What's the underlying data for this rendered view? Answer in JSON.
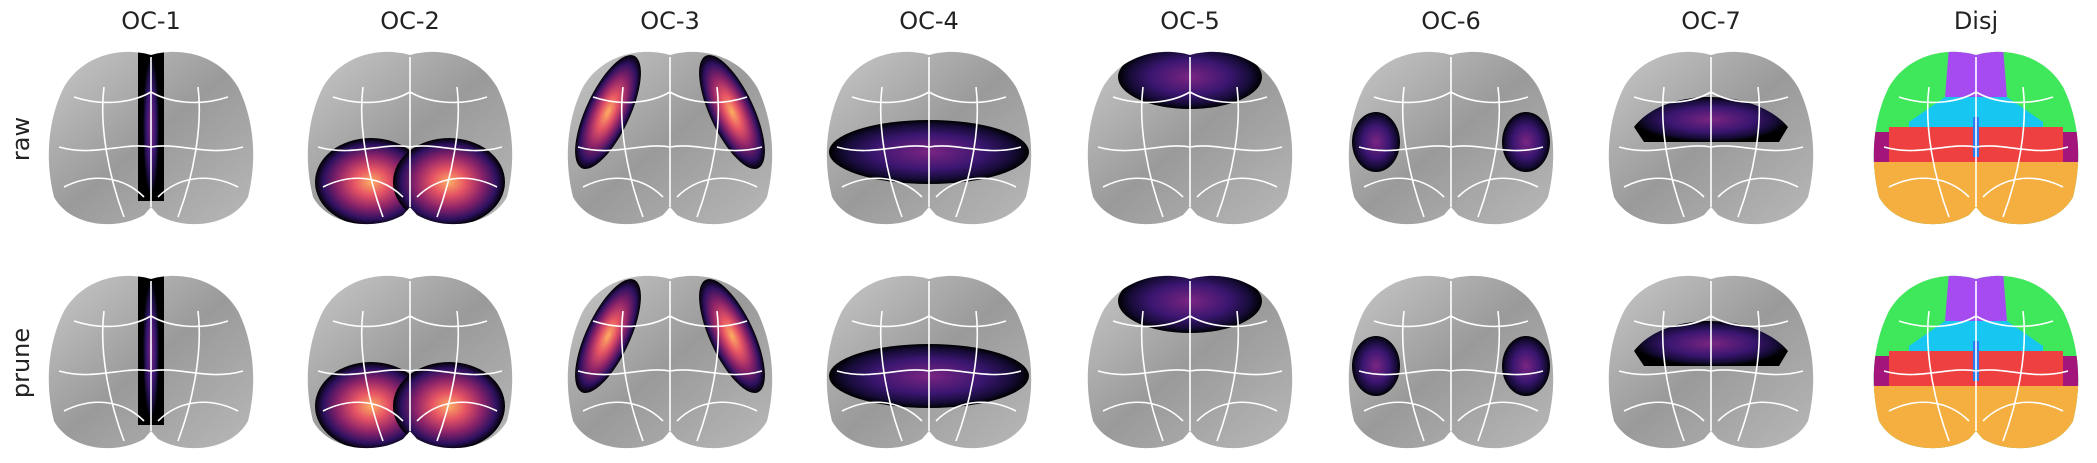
{
  "columns": [
    "OC-1",
    "OC-2",
    "OC-3",
    "OC-4",
    "OC-5",
    "OC-6",
    "OC-7",
    "Disj"
  ],
  "rows": [
    "raw",
    "prune"
  ]
}
